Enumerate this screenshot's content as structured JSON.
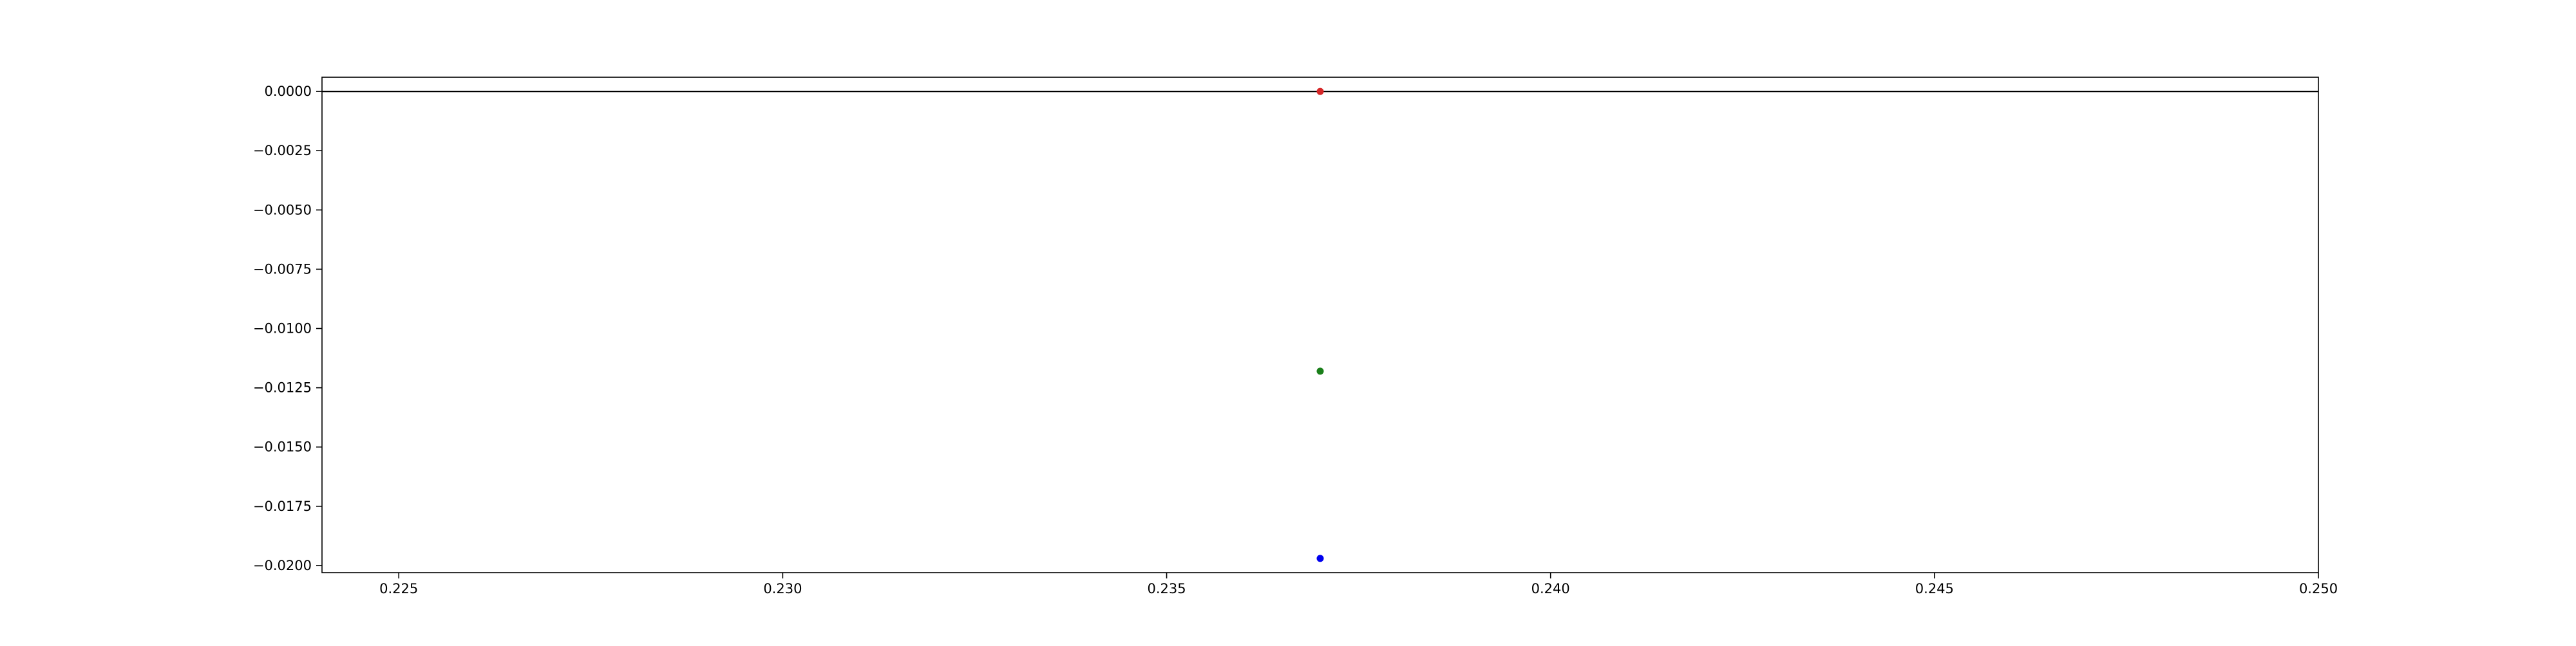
{
  "chart_data": {
    "type": "scatter",
    "title": "",
    "xlabel": "",
    "ylabel": "",
    "xlim": [
      0.224,
      0.25
    ],
    "ylim": [
      -0.0203,
      0.0006
    ],
    "grid": false,
    "x_ticks": [
      0.225,
      0.23,
      0.235,
      0.24,
      0.245,
      0.25
    ],
    "x_tick_labels": [
      "0.225",
      "0.230",
      "0.235",
      "0.240",
      "0.245",
      "0.250"
    ],
    "y_ticks": [
      0.0,
      -0.0025,
      -0.005,
      -0.0075,
      -0.01,
      -0.0125,
      -0.015,
      -0.0175,
      -0.02
    ],
    "y_tick_labels": [
      "0.0000",
      "−0.0025",
      "−0.0050",
      "−0.0075",
      "−0.0100",
      "−0.0125",
      "−0.0150",
      "−0.0175",
      "−0.0200"
    ],
    "reference_line": {
      "y": 0.0,
      "color": "#000000"
    },
    "points": [
      {
        "x": 0.237,
        "y": 0.0,
        "color": "#d62728"
      },
      {
        "x": 0.237,
        "y": -0.0118,
        "color": "#1a7f1a"
      },
      {
        "x": 0.237,
        "y": -0.0197,
        "color": "#0000ee"
      }
    ]
  }
}
